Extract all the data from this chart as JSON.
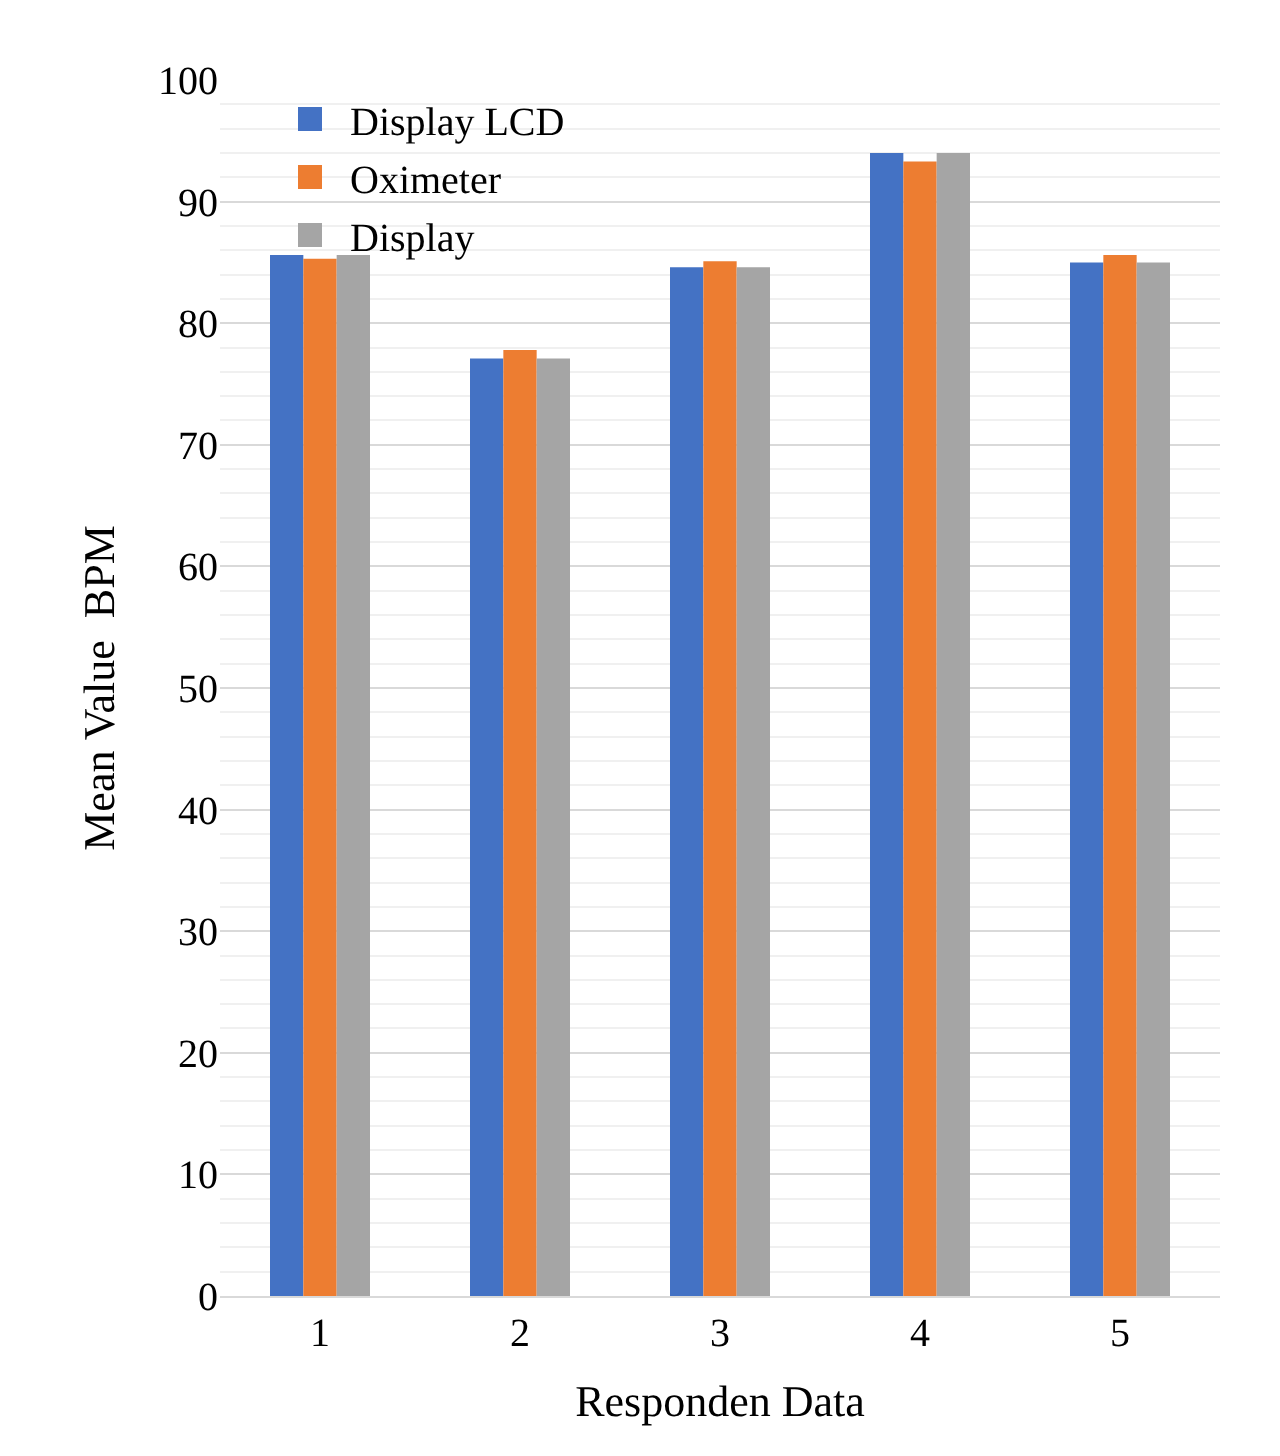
{
  "chart_data": {
    "type": "bar",
    "xlabel": "Responden Data",
    "ylabel": "Mean Value  BPM",
    "categories": [
      "1",
      "2",
      "3",
      "4",
      "5"
    ],
    "series": [
      {
        "name": "Display LCD",
        "color": "#4472c4",
        "values": [
          85.6,
          77.1,
          84.6,
          94.0,
          85.0
        ]
      },
      {
        "name": "Oximeter",
        "color": "#ed7d31",
        "values": [
          85.3,
          77.8,
          85.1,
          93.3,
          85.6
        ]
      },
      {
        "name": "Display",
        "color": "#a5a5a5",
        "values": [
          85.6,
          77.1,
          84.6,
          94.0,
          85.0
        ]
      }
    ],
    "ylim": [
      0,
      100
    ],
    "yticks": [
      0,
      10,
      20,
      30,
      40,
      50,
      60,
      70,
      80,
      90,
      100
    ],
    "grid": "y",
    "legend": "top left"
  }
}
